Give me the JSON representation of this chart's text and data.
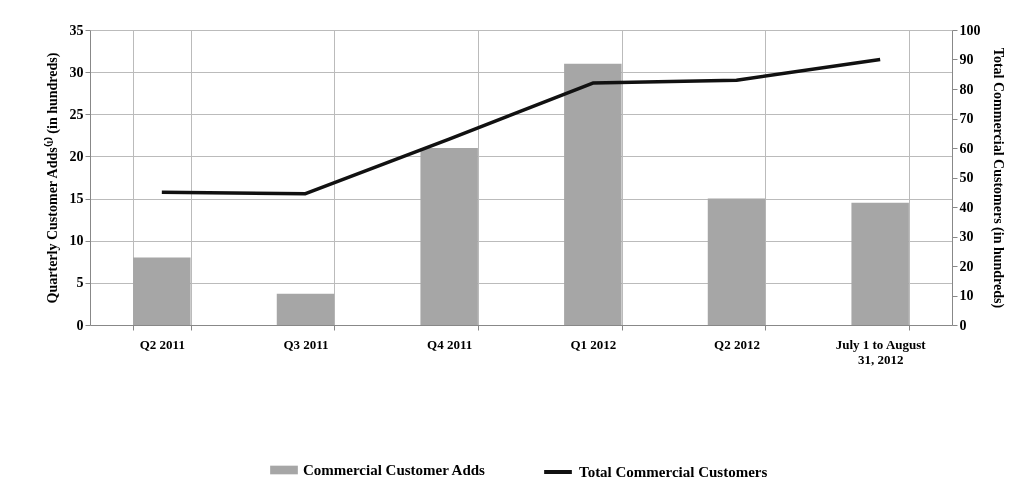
{
  "chart_data": {
    "type": "bar",
    "ylabel": "Quarterly Customer Adds⁽¹⁾ (in hundreds)",
    "y2label": "Total Commercial Customers (in hundreds)",
    "categories": [
      "Q2 2011",
      "Q3 2011",
      "Q4 2011",
      "Q1 2012",
      "Q2 2012",
      "July 1 to August 31, 2012"
    ],
    "series": [
      {
        "name": "Commercial Customer Adds",
        "color": "#a6a6a6",
        "values": [
          8,
          3.7,
          21,
          31,
          15,
          14.5
        ]
      },
      {
        "name": "Total Commercial Customers",
        "type": "line",
        "axis": "y2",
        "color": "#111111",
        "values": [
          45,
          44.5,
          63,
          82,
          83,
          90
        ]
      }
    ],
    "ylim": [
      0,
      35
    ],
    "yticks": [
      0,
      5,
      10,
      15,
      20,
      25,
      30,
      35
    ],
    "y2lim": [
      0,
      100
    ],
    "y2ticks": [
      0,
      10,
      20,
      30,
      40,
      50,
      60,
      70,
      80,
      90,
      100
    ],
    "grid": true,
    "legend": "bottom"
  }
}
